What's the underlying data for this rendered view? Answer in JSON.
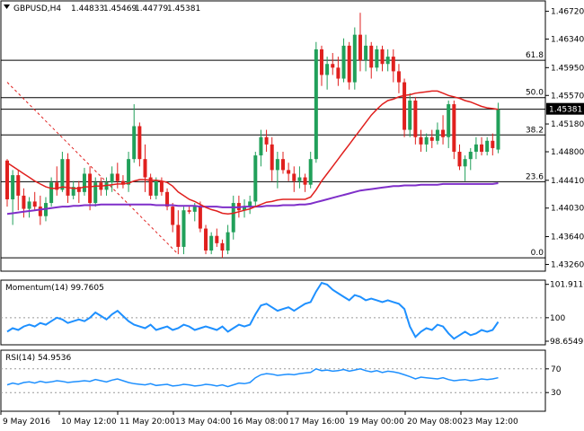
{
  "header": {
    "symbol_label": "GBPUSD,H4",
    "ohlc": [
      "1.44833",
      "1.45469",
      "1.44779",
      "1.45381"
    ],
    "dropdown_icon": "triangle-down-icon"
  },
  "colors": {
    "bull": "#21a05a",
    "bear": "#e0201e",
    "sma_fast": "#e0201e",
    "sma_slow": "#7f2fc9",
    "indicator": "#1e90ff",
    "level": "#000000",
    "trendline": "#e0201e"
  },
  "chart_data": [
    {
      "type": "candlestick",
      "title": "GBPUSD,H4",
      "y_ticks": [
        "1.46720",
        "1.46340",
        "1.45950",
        "1.45570",
        "1.45180",
        "1.44800",
        "1.44410",
        "1.44030",
        "1.43640",
        "1.43260"
      ],
      "ylim": [
        1.4318,
        1.4685
      ],
      "current_price": "1.45381",
      "fib_levels": [
        {
          "label": "61.8",
          "value": 1.4605
        },
        {
          "label": "50.0",
          "value": 1.4554
        },
        {
          "label": "38.2",
          "value": 1.4503
        },
        {
          "label": "23.6",
          "value": 1.4439
        },
        {
          "label": "0.0",
          "value": 1.4335
        }
      ],
      "candles": [
        [
          1.4468,
          1.447,
          1.4405,
          1.4415
        ],
        [
          1.4415,
          1.4455,
          1.438,
          1.4448
        ],
        [
          1.4448,
          1.4455,
          1.44,
          1.442
        ],
        [
          1.442,
          1.443,
          1.439,
          1.4402
        ],
        [
          1.4402,
          1.4418,
          1.439,
          1.4412
        ],
        [
          1.4412,
          1.4425,
          1.44,
          1.4405
        ],
        [
          1.4405,
          1.442,
          1.438,
          1.4392
        ],
        [
          1.4392,
          1.4418,
          1.4385,
          1.441
        ],
        [
          1.441,
          1.4445,
          1.4405,
          1.4438
        ],
        [
          1.4438,
          1.446,
          1.442,
          1.4428
        ],
        [
          1.4428,
          1.448,
          1.4425,
          1.447
        ],
        [
          1.447,
          1.4478,
          1.441,
          1.442
        ],
        [
          1.442,
          1.444,
          1.4415,
          1.4432
        ],
        [
          1.4432,
          1.444,
          1.441,
          1.4425
        ],
        [
          1.4425,
          1.4458,
          1.442,
          1.445
        ],
        [
          1.445,
          1.446,
          1.44,
          1.441
        ],
        [
          1.441,
          1.4445,
          1.4405,
          1.4438
        ],
        [
          1.4438,
          1.4445,
          1.442,
          1.4428
        ],
        [
          1.4428,
          1.4445,
          1.442,
          1.4438
        ],
        [
          1.4438,
          1.446,
          1.4425,
          1.445
        ],
        [
          1.445,
          1.4465,
          1.443,
          1.444
        ],
        [
          1.444,
          1.4448,
          1.443,
          1.4435
        ],
        [
          1.4435,
          1.448,
          1.4425,
          1.447
        ],
        [
          1.447,
          1.4545,
          1.4465,
          1.4515
        ],
        [
          1.4515,
          1.452,
          1.446,
          1.447
        ],
        [
          1.447,
          1.449,
          1.4425,
          1.4445
        ],
        [
          1.4445,
          1.445,
          1.4415,
          1.442
        ],
        [
          1.442,
          1.4445,
          1.4415,
          1.444
        ],
        [
          1.444,
          1.4445,
          1.442,
          1.4425
        ],
        [
          1.4425,
          1.443,
          1.44,
          1.4405
        ],
        [
          1.4405,
          1.441,
          1.437,
          1.438
        ],
        [
          1.438,
          1.44,
          1.434,
          1.435
        ],
        [
          1.435,
          1.4405,
          1.434,
          1.44
        ],
        [
          1.44,
          1.4405,
          1.4395,
          1.4398
        ],
        [
          1.4398,
          1.441,
          1.4385,
          1.4405
        ],
        [
          1.4405,
          1.4412,
          1.437,
          1.4375
        ],
        [
          1.4375,
          1.438,
          1.434,
          1.4345
        ],
        [
          1.4345,
          1.437,
          1.434,
          1.4365
        ],
        [
          1.4365,
          1.4375,
          1.435,
          1.4355
        ],
        [
          1.4355,
          1.436,
          1.4335,
          1.4345
        ],
        [
          1.4345,
          1.438,
          1.434,
          1.437
        ],
        [
          1.437,
          1.442,
          1.436,
          1.441
        ],
        [
          1.441,
          1.442,
          1.439,
          1.44
        ],
        [
          1.44,
          1.4415,
          1.439,
          1.4405
        ],
        [
          1.4405,
          1.442,
          1.4395,
          1.4412
        ],
        [
          1.4412,
          1.448,
          1.4405,
          1.4475
        ],
        [
          1.4475,
          1.451,
          1.446,
          1.45
        ],
        [
          1.45,
          1.451,
          1.448,
          1.449
        ],
        [
          1.449,
          1.45,
          1.444,
          1.4455
        ],
        [
          1.4455,
          1.448,
          1.443,
          1.447
        ],
        [
          1.447,
          1.448,
          1.445,
          1.4455
        ],
        [
          1.4455,
          1.4465,
          1.444,
          1.445
        ],
        [
          1.445,
          1.446,
          1.4425,
          1.444
        ],
        [
          1.444,
          1.446,
          1.443,
          1.4445
        ],
        [
          1.4445,
          1.445,
          1.4425,
          1.4435
        ],
        [
          1.4435,
          1.448,
          1.443,
          1.447
        ],
        [
          1.447,
          1.463,
          1.4465,
          1.462
        ],
        [
          1.462,
          1.4625,
          1.457,
          1.4585
        ],
        [
          1.4585,
          1.461,
          1.4565,
          1.46
        ],
        [
          1.46,
          1.4615,
          1.4585,
          1.4595
        ],
        [
          1.4595,
          1.461,
          1.457,
          1.458
        ],
        [
          1.458,
          1.4635,
          1.4575,
          1.4625
        ],
        [
          1.4625,
          1.463,
          1.4565,
          1.4575
        ],
        [
          1.4575,
          1.465,
          1.4565,
          1.464
        ],
        [
          1.464,
          1.467,
          1.459,
          1.4605
        ],
        [
          1.4605,
          1.464,
          1.459,
          1.4625
        ],
        [
          1.4625,
          1.463,
          1.458,
          1.4595
        ],
        [
          1.4595,
          1.4625,
          1.459,
          1.462
        ],
        [
          1.462,
          1.4625,
          1.459,
          1.46
        ],
        [
          1.46,
          1.462,
          1.459,
          1.461
        ],
        [
          1.461,
          1.462,
          1.4575,
          1.459
        ],
        [
          1.459,
          1.46,
          1.456,
          1.4575
        ],
        [
          1.4575,
          1.458,
          1.45,
          1.451
        ],
        [
          1.451,
          1.456,
          1.45,
          1.455
        ],
        [
          1.455,
          1.4555,
          1.449,
          1.45
        ],
        [
          1.45,
          1.451,
          1.448,
          1.449
        ],
        [
          1.449,
          1.4505,
          1.448,
          1.45
        ],
        [
          1.45,
          1.451,
          1.4485,
          1.4495
        ],
        [
          1.4495,
          1.452,
          1.449,
          1.451
        ],
        [
          1.451,
          1.453,
          1.449,
          1.45
        ],
        [
          1.45,
          1.455,
          1.4485,
          1.4545
        ],
        [
          1.4545,
          1.455,
          1.447,
          1.448
        ],
        [
          1.448,
          1.449,
          1.4455,
          1.446
        ],
        [
          1.446,
          1.4475,
          1.444,
          1.447
        ],
        [
          1.447,
          1.4485,
          1.4455,
          1.448
        ],
        [
          1.448,
          1.45,
          1.447,
          1.449
        ],
        [
          1.449,
          1.45,
          1.4475,
          1.448
        ],
        [
          1.448,
          1.45,
          1.4475,
          1.4495
        ],
        [
          1.4495,
          1.4505,
          1.4475,
          1.4485
        ],
        [
          1.4483,
          1.4547,
          1.4478,
          1.4538
        ]
      ],
      "sma_fast": [
        1.4465,
        1.446,
        1.4455,
        1.445,
        1.4445,
        1.444,
        1.4436,
        1.4432,
        1.443,
        1.443,
        1.4432,
        1.4431,
        1.443,
        1.443,
        1.4432,
        1.4432,
        1.4433,
        1.4433,
        1.4434,
        1.4435,
        1.4436,
        1.4436,
        1.4437,
        1.444,
        1.4442,
        1.4442,
        1.4441,
        1.4441,
        1.444,
        1.4438,
        1.4433,
        1.4425,
        1.442,
        1.4415,
        1.4412,
        1.4408,
        1.4404,
        1.4401,
        1.4399,
        1.4396,
        1.4395,
        1.4396,
        1.4398,
        1.44,
        1.4402,
        1.4405,
        1.4408,
        1.4411,
        1.4412,
        1.4414,
        1.4415,
        1.4415,
        1.4415,
        1.4415,
        1.4415,
        1.4418,
        1.4428,
        1.444,
        1.445,
        1.446,
        1.447,
        1.448,
        1.449,
        1.45,
        1.451,
        1.452,
        1.453,
        1.4538,
        1.4545,
        1.455,
        1.4552,
        1.4555,
        1.4557,
        1.4558,
        1.456,
        1.4561,
        1.4562,
        1.4563,
        1.4563,
        1.456,
        1.4557,
        1.4555,
        1.4553,
        1.455,
        1.4548,
        1.4545,
        1.4542,
        1.454,
        1.4539,
        1.4538
      ],
      "sma_slow": [
        1.4395,
        1.4396,
        1.4397,
        1.4398,
        1.4399,
        1.44,
        1.4401,
        1.4402,
        1.4403,
        1.4404,
        1.4405,
        1.4405,
        1.4406,
        1.4406,
        1.4407,
        1.4407,
        1.4407,
        1.4408,
        1.4408,
        1.4408,
        1.4408,
        1.4408,
        1.4408,
        1.4408,
        1.4408,
        1.4408,
        1.4408,
        1.4407,
        1.4407,
        1.4407,
        1.4407,
        1.4406,
        1.4406,
        1.4406,
        1.4406,
        1.4405,
        1.4405,
        1.4405,
        1.4405,
        1.4404,
        1.4404,
        1.4404,
        1.4404,
        1.4405,
        1.4405,
        1.4405,
        1.4405,
        1.4406,
        1.4406,
        1.4406,
        1.4407,
        1.4407,
        1.4407,
        1.4408,
        1.4408,
        1.4409,
        1.4411,
        1.4413,
        1.4415,
        1.4417,
        1.4419,
        1.4421,
        1.4423,
        1.4425,
        1.4427,
        1.4428,
        1.4429,
        1.443,
        1.4431,
        1.4432,
        1.4433,
        1.4433,
        1.4434,
        1.4434,
        1.4434,
        1.4435,
        1.4435,
        1.4435,
        1.4435,
        1.4436,
        1.4436,
        1.4436,
        1.4436,
        1.4436,
        1.4436,
        1.4436,
        1.4436,
        1.4436,
        1.4436,
        1.4437
      ],
      "trendline": {
        "from": [
          0,
          1.4575
        ],
        "to": [
          31,
          1.434
        ]
      }
    },
    {
      "type": "line",
      "title": "Momentum(14) 99.7605",
      "name": "Momentum(14)",
      "value_label": "99.7605",
      "y_ticks": [
        "101.9116",
        "100",
        "98.6549"
      ],
      "ylim": [
        98.5,
        102.05
      ],
      "ref_value": 100,
      "values": [
        99.2,
        99.4,
        99.3,
        99.5,
        99.6,
        99.5,
        99.7,
        99.6,
        99.8,
        100.0,
        99.9,
        99.7,
        99.8,
        99.9,
        99.8,
        100.0,
        100.3,
        100.1,
        99.9,
        100.2,
        100.4,
        100.1,
        99.8,
        99.6,
        99.5,
        99.4,
        99.6,
        99.3,
        99.4,
        99.5,
        99.3,
        99.4,
        99.6,
        99.5,
        99.3,
        99.4,
        99.5,
        99.4,
        99.3,
        99.5,
        99.2,
        99.4,
        99.6,
        99.5,
        99.6,
        100.2,
        100.7,
        100.8,
        100.6,
        100.4,
        100.5,
        100.6,
        100.4,
        100.6,
        100.8,
        100.9,
        101.5,
        102.0,
        101.9,
        101.6,
        101.4,
        101.2,
        101.0,
        101.3,
        101.2,
        101.0,
        101.1,
        101.0,
        100.9,
        101.0,
        100.9,
        100.8,
        100.5,
        99.5,
        98.9,
        99.2,
        99.4,
        99.3,
        99.6,
        99.5,
        99.1,
        98.8,
        99.0,
        99.2,
        99.0,
        99.1,
        99.3,
        99.2,
        99.3,
        99.76
      ]
    },
    {
      "type": "line",
      "title": "RSI(14) 54.9536",
      "name": "RSI(14)",
      "value_label": "54.9536",
      "y_ticks": [
        "70",
        "30"
      ],
      "ylim": [
        0,
        100
      ],
      "guide_levels": [
        30,
        70
      ],
      "values": [
        43,
        46,
        44,
        47,
        48,
        46,
        49,
        47,
        48,
        50,
        49,
        47,
        48,
        49,
        50,
        49,
        52,
        50,
        48,
        51,
        53,
        50,
        47,
        45,
        44,
        43,
        45,
        42,
        43,
        44,
        41,
        42,
        44,
        43,
        41,
        42,
        44,
        43,
        41,
        43,
        40,
        43,
        46,
        45,
        47,
        55,
        60,
        62,
        61,
        59,
        60,
        61,
        60,
        62,
        63,
        64,
        70,
        67,
        68,
        66,
        67,
        69,
        66,
        68,
        70,
        67,
        65,
        67,
        64,
        66,
        65,
        63,
        60,
        57,
        53,
        56,
        55,
        54,
        53,
        55,
        52,
        50,
        51,
        52,
        50,
        51,
        53,
        52,
        53,
        55
      ]
    },
    {
      "type": "axis",
      "x_labels": [
        "9 May 2016",
        "10 May 12:00",
        "11 May 20:00",
        "13 May 04:00",
        "16 May 08:00",
        "17 May 16:00",
        "19 May 00:00",
        "20 May 08:00",
        "23 May 12:00"
      ]
    }
  ]
}
